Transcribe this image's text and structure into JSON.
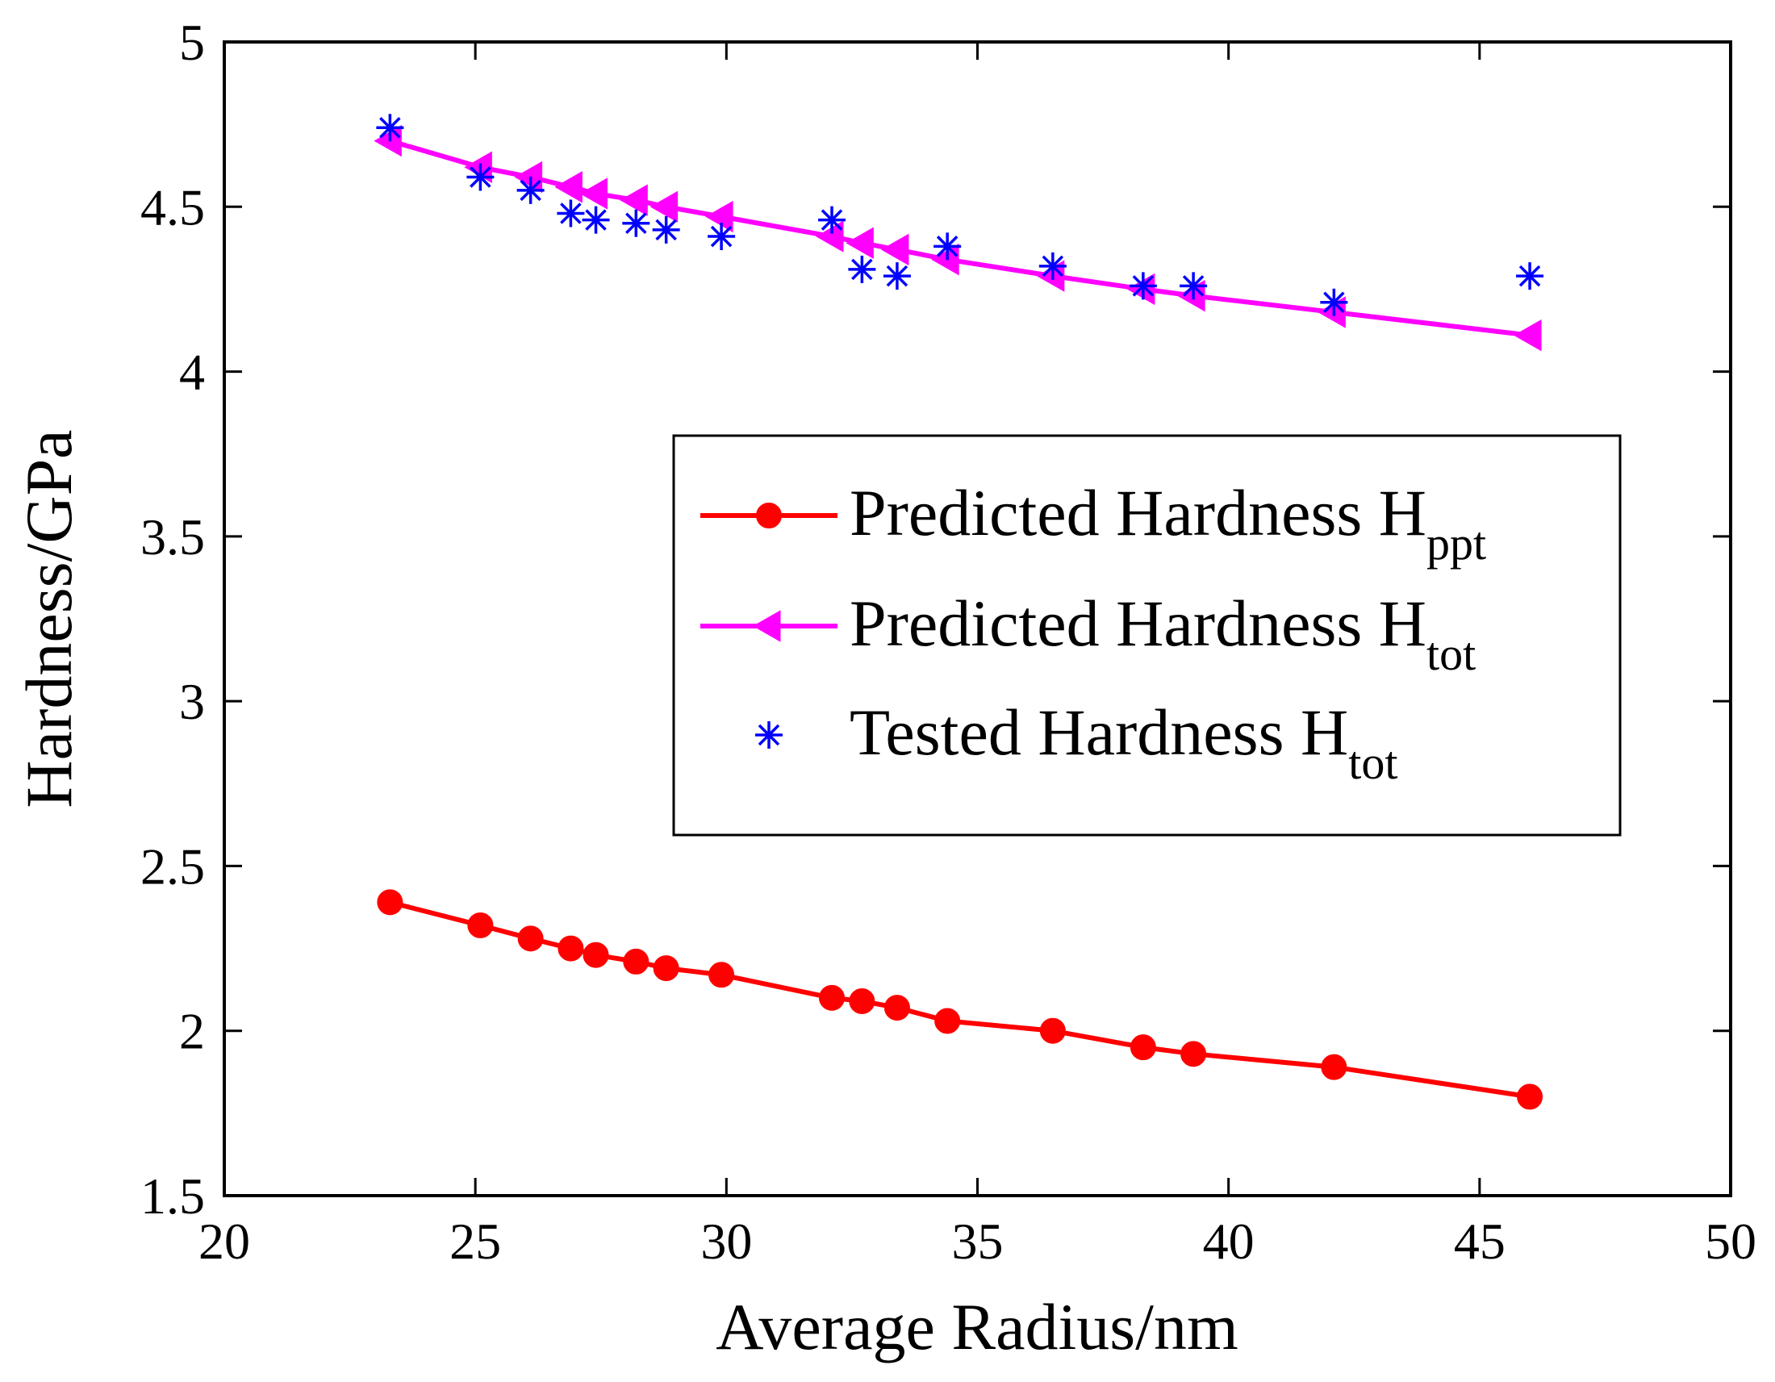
{
  "chart_data": {
    "type": "line",
    "title": "",
    "xlabel": "Average Radius/nm",
    "ylabel": "Hardness/GPa",
    "xlim": [
      20,
      50
    ],
    "ylim": [
      1.5,
      5
    ],
    "xticks": [
      "20",
      "25",
      "30",
      "35",
      "40",
      "45",
      "50"
    ],
    "yticks": [
      "1.5",
      "2",
      "2.5",
      "3",
      "3.5",
      "4",
      "4.5",
      "5"
    ],
    "grid": false,
    "legend_position": "center-right",
    "series": [
      {
        "name": "Predicted Hardness H",
        "subscript": "ppt",
        "style": "line-circle",
        "color": "#ff0000",
        "points": [
          [
            23.3,
            2.39
          ],
          [
            25.1,
            2.32
          ],
          [
            26.1,
            2.28
          ],
          [
            26.9,
            2.25
          ],
          [
            27.4,
            2.23
          ],
          [
            28.2,
            2.21
          ],
          [
            28.8,
            2.19
          ],
          [
            29.9,
            2.17
          ],
          [
            32.1,
            2.1
          ],
          [
            32.7,
            2.09
          ],
          [
            33.4,
            2.07
          ],
          [
            34.4,
            2.03
          ],
          [
            36.5,
            2.0
          ],
          [
            38.3,
            1.95
          ],
          [
            39.3,
            1.93
          ],
          [
            42.1,
            1.89
          ],
          [
            46.0,
            1.8
          ]
        ]
      },
      {
        "name": "Predicted Hardness H",
        "subscript": "tot",
        "style": "line-triangle",
        "color": "#ff00ff",
        "points": [
          [
            23.3,
            4.7
          ],
          [
            25.1,
            4.62
          ],
          [
            26.1,
            4.59
          ],
          [
            26.9,
            4.56
          ],
          [
            27.4,
            4.54
          ],
          [
            28.2,
            4.52
          ],
          [
            28.8,
            4.5
          ],
          [
            29.9,
            4.47
          ],
          [
            32.1,
            4.41
          ],
          [
            32.7,
            4.39
          ],
          [
            33.4,
            4.37
          ],
          [
            34.4,
            4.34
          ],
          [
            36.5,
            4.29
          ],
          [
            38.3,
            4.25
          ],
          [
            39.3,
            4.23
          ],
          [
            42.1,
            4.18
          ],
          [
            46.0,
            4.11
          ]
        ]
      },
      {
        "name": "Tested Hardness H",
        "subscript": "tot",
        "style": "marker-asterisk",
        "color": "#0000ff",
        "points": [
          [
            23.3,
            4.74
          ],
          [
            25.1,
            4.59
          ],
          [
            26.1,
            4.55
          ],
          [
            26.9,
            4.48
          ],
          [
            27.4,
            4.46
          ],
          [
            28.2,
            4.45
          ],
          [
            28.8,
            4.43
          ],
          [
            29.9,
            4.41
          ],
          [
            32.1,
            4.46
          ],
          [
            32.7,
            4.31
          ],
          [
            33.4,
            4.29
          ],
          [
            34.4,
            4.38
          ],
          [
            36.5,
            4.32
          ],
          [
            38.3,
            4.26
          ],
          [
            39.3,
            4.26
          ],
          [
            42.1,
            4.21
          ],
          [
            46.0,
            4.29
          ]
        ]
      }
    ]
  }
}
